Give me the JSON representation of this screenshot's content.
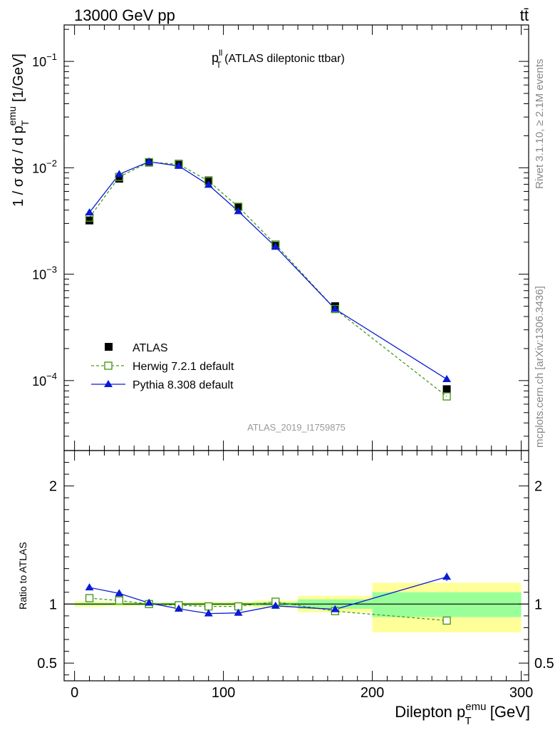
{
  "header": {
    "left": "13000 GeV pp",
    "right": "tt̄"
  },
  "side_text": {
    "top": "Rivet 3.1.10, ≥ 2.1M events",
    "bottom": "mcplots.cern.ch [arXiv:1306.3436]"
  },
  "colors": {
    "atlas": "#000000",
    "herwig": "#4a9a1a",
    "pythia": "#0a1ad6",
    "band_inner": "#99ff99",
    "band_outer": "#ffff99"
  },
  "chart_data": [
    {
      "type": "scatter",
      "panel": "main",
      "title": "p_T^ll (ATLAS dileptonic ttbar)",
      "title_main": "p",
      "title_sup": "ll",
      "title_sub": "T",
      "title_rest": " (ATLAS dileptonic ttbar)",
      "ylabel": "1 / σ dσ / d p_T^emu [1/GeV]",
      "ylabel_parts": {
        "main": "1 / σ dσ / d p",
        "sup": "emu",
        "sub": "T",
        "rest": " [1/GeV]"
      },
      "yscale": "log",
      "ylim": [
        2.2e-05,
        0.22
      ],
      "xlim": [
        -7,
        305
      ],
      "y_ticks": [
        {
          "value": 0.1,
          "mantissa": "10",
          "exponent": "−1"
        },
        {
          "value": 0.01,
          "mantissa": "10",
          "exponent": "−2"
        },
        {
          "value": 0.001,
          "mantissa": "10",
          "exponent": "−3"
        },
        {
          "value": 0.0001,
          "mantissa": "10",
          "exponent": "−4"
        }
      ],
      "watermark": "ATLAS_2019_I1759875",
      "legend": {
        "position": "bottom-left",
        "entries": [
          "ATLAS",
          "Herwig 7.2.1 default",
          "Pythia 8.308 default"
        ]
      },
      "series": [
        {
          "name": "ATLAS",
          "style": "black-square",
          "x": [
            10,
            30,
            50,
            70,
            90,
            110,
            135,
            175,
            250
          ],
          "y": [
            0.0032,
            0.0079,
            0.0112,
            0.0109,
            0.0076,
            0.0043,
            0.00185,
            0.0005,
            8.3e-05
          ]
        },
        {
          "name": "Herwig 7.2.1 default",
          "style": "green-open-square-dashed",
          "x": [
            10,
            30,
            50,
            70,
            90,
            110,
            135,
            175,
            250
          ],
          "y": [
            0.0034,
            0.0082,
            0.0113,
            0.0108,
            0.0075,
            0.0043,
            0.0019,
            0.00047,
            7.1e-05
          ]
        },
        {
          "name": "Pythia 8.308 default",
          "style": "blue-triangle-solid",
          "x": [
            10,
            30,
            50,
            70,
            90,
            110,
            135,
            175,
            250
          ],
          "y": [
            0.0038,
            0.0087,
            0.0114,
            0.0104,
            0.0069,
            0.0039,
            0.00181,
            0.00047,
            0.000103
          ]
        }
      ]
    },
    {
      "type": "scatter",
      "panel": "ratio",
      "ylabel": "Ratio to ATLAS",
      "xlabel": "Dilepton p_T^emu [GeV]",
      "xlabel_parts": {
        "main": "Dilepton p",
        "sup": "emu",
        "sub": "T",
        "rest": " [GeV]"
      },
      "ylim": [
        0.35,
        2.3
      ],
      "xlim": [
        -7,
        305
      ],
      "y_ticks": [
        "0.5",
        "1",
        "2"
      ],
      "y_tick_values": [
        0.5,
        1,
        2
      ],
      "x_ticks": [
        "0",
        "100",
        "200",
        "300"
      ],
      "x_tick_values": [
        0,
        100,
        200,
        300
      ],
      "bands": [
        {
          "x": [
            0,
            20
          ],
          "inner": [
            0.99,
            1.01
          ],
          "outer": [
            0.975,
            1.025
          ]
        },
        {
          "x": [
            20,
            40
          ],
          "inner": [
            0.99,
            1.01
          ],
          "outer": [
            0.98,
            1.02
          ]
        },
        {
          "x": [
            40,
            60
          ],
          "inner": [
            0.99,
            1.01
          ],
          "outer": [
            0.985,
            1.015
          ]
        },
        {
          "x": [
            60,
            80
          ],
          "inner": [
            0.99,
            1.01
          ],
          "outer": [
            0.985,
            1.015
          ]
        },
        {
          "x": [
            80,
            100
          ],
          "inner": [
            0.99,
            1.01
          ],
          "outer": [
            0.98,
            1.02
          ]
        },
        {
          "x": [
            100,
            120
          ],
          "inner": [
            0.99,
            1.01
          ],
          "outer": [
            0.98,
            1.02
          ]
        },
        {
          "x": [
            120,
            150
          ],
          "inner": [
            0.985,
            1.015
          ],
          "outer": [
            0.97,
            1.03
          ]
        },
        {
          "x": [
            150,
            200
          ],
          "inner": [
            0.96,
            1.04
          ],
          "outer": [
            0.93,
            1.07
          ]
        },
        {
          "x": [
            200,
            300
          ],
          "inner": [
            0.89,
            1.1
          ],
          "outer": [
            0.76,
            1.18
          ]
        }
      ],
      "reference_line": 1,
      "series": [
        {
          "name": "Herwig 7.2.1 default",
          "style": "green-open-square-dashed",
          "x": [
            10,
            30,
            50,
            70,
            90,
            110,
            135,
            175,
            250
          ],
          "y": [
            1.05,
            1.03,
            1.0,
            0.99,
            0.98,
            0.98,
            1.02,
            0.94,
            0.86
          ],
          "err": [
            0,
            0,
            0,
            0,
            0,
            0,
            0,
            0,
            0.03
          ]
        },
        {
          "name": "Pythia 8.308 default",
          "style": "blue-triangle-solid",
          "x": [
            10,
            30,
            50,
            70,
            90,
            110,
            135,
            175,
            250
          ],
          "y": [
            1.14,
            1.09,
            1.01,
            0.96,
            0.92,
            0.925,
            0.985,
            0.955,
            1.23
          ],
          "err": [
            0,
            0,
            0,
            0,
            0,
            0,
            0,
            0.015,
            0.035
          ]
        }
      ]
    }
  ]
}
